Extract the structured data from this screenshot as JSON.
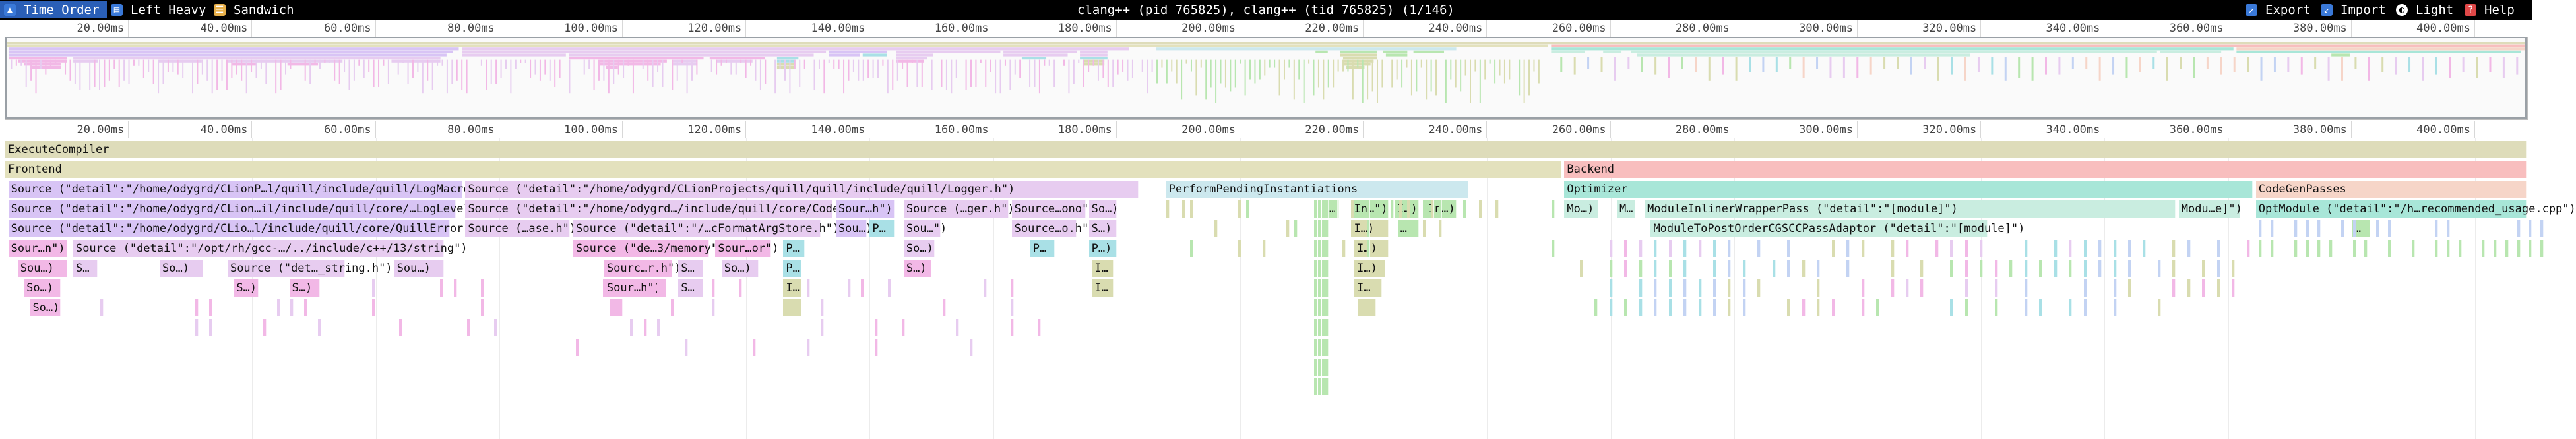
{
  "toolbar": {
    "time_order": "Time Order",
    "left_heavy": "Left Heavy",
    "sandwich": "Sandwich",
    "title": "clang++ (pid 765825), clang++ (tid 765825) (1/146)",
    "export": "Export",
    "import": "Import",
    "light": "Light",
    "help": "Help"
  },
  "icons": {
    "time_order": "timeline-icon",
    "left_heavy": "left-heavy-icon",
    "sandwich": "sandwich-icon",
    "export": "export-icon",
    "import": "import-icon",
    "light": "theme-icon",
    "help": "help-icon"
  },
  "ticks": [
    "20.00ms",
    "40.00ms",
    "60.00ms",
    "80.00ms",
    "100.00ms",
    "120.00ms",
    "140.00ms",
    "160.00ms",
    "180.00ms",
    "200.00ms",
    "220.00ms",
    "240.00ms",
    "260.00ms",
    "280.00ms",
    "300.00ms",
    "320.00ms",
    "340.00ms",
    "360.00ms",
    "380.00ms",
    "400.00ms"
  ],
  "colors": {
    "execute": "#dedcba",
    "frontend": "#e3e1bd",
    "backend": "#f8bebe",
    "source_purple": "#d8c4f5",
    "source_lilac": "#e7ccf0",
    "source_pink": "#f2b8e6",
    "optimizer": "#a8e6d8",
    "module_pass": "#c9ede0",
    "codegen": "#f6d5c8",
    "pending": "#cce8ee",
    "green": "#b8e6b0",
    "olive": "#d9dcb0",
    "cyan": "#a9e0e6",
    "blue": "#c3d3f3"
  },
  "frames": [
    {
      "d": 0,
      "s": 0,
      "e": 412,
      "label": "ExecuteCompiler",
      "c": "execute"
    },
    {
      "d": 1,
      "s": 0,
      "e": 252,
      "label": "Frontend",
      "c": "frontend"
    },
    {
      "d": 1,
      "s": 252.5,
      "e": 412,
      "label": "Backend",
      "c": "backend"
    },
    {
      "d": 2,
      "s": 0.5,
      "e": 74,
      "label": "Source (\"detail\":\"/home/odygrd/CLionP…l/quill/include/quill/LogMacros.h\")",
      "c": "source_purple"
    },
    {
      "d": 2,
      "s": 74.5,
      "e": 183.5,
      "label": "Source (\"detail\":\"/home/odygrd/CLionProjects/quill/quill/include/quill/Logger.h\")",
      "c": "source_lilac"
    },
    {
      "d": 2,
      "s": 188,
      "e": 237,
      "label": "PerformPendingInstantiations",
      "c": "pending"
    },
    {
      "d": 2,
      "s": 252.5,
      "e": 364,
      "label": "Optimizer",
      "c": "optimizer"
    },
    {
      "d": 2,
      "s": 364.5,
      "e": 412,
      "label": "CodeGenPasses",
      "c": "codegen"
    },
    {
      "d": 3,
      "s": 0.5,
      "e": 73,
      "label": "Source (\"detail\":\"/home/odygrd/CLion…il/include/quill/core/…LogLevel.h\")",
      "c": "source_purple"
    },
    {
      "d": 3,
      "s": 74.5,
      "e": 134,
      "label": "Source (\"detail\":\"/home/odygrd…/include/quill/core/Codec.h\")",
      "c": "source_lilac"
    },
    {
      "d": 3,
      "s": 134.5,
      "e": 144,
      "label": "Sour…h\")",
      "c": "source_purple"
    },
    {
      "d": 3,
      "s": 145.5,
      "e": 162.5,
      "label": "Source (…ger.h\")",
      "c": "source_lilac"
    },
    {
      "d": 3,
      "s": 163,
      "e": 175,
      "label": "Source…ono\")",
      "c": "source_lilac"
    },
    {
      "d": 3,
      "s": 175.5,
      "e": 180,
      "label": "So…)",
      "c": "source_lilac"
    },
    {
      "d": 3,
      "s": 214,
      "e": 216,
      "label": "…",
      "c": "green"
    },
    {
      "d": 3,
      "s": 218,
      "e": 224,
      "label": "In…\")",
      "c": "green"
    },
    {
      "d": 3,
      "s": 225,
      "e": 229,
      "label": "I…)",
      "c": "green"
    },
    {
      "d": 3,
      "s": 230,
      "e": 235,
      "label": "In…)",
      "c": "green"
    },
    {
      "d": 3,
      "s": 252.5,
      "e": 258,
      "label": "Mo…)",
      "c": "module_pass"
    },
    {
      "d": 3,
      "s": 261,
      "e": 264,
      "label": "M…",
      "c": "module_pass"
    },
    {
      "d": 3,
      "s": 265.5,
      "e": 351.5,
      "label": "ModuleInlinerWrapperPass (\"detail\":\"[module]\")",
      "c": "module_pass"
    },
    {
      "d": 3,
      "s": 352,
      "e": 362,
      "label": "Modu…e]\")",
      "c": "module_pass"
    },
    {
      "d": 3,
      "s": 364.5,
      "e": 411,
      "label": "OptModule (\"detail\":\"/h…recommended_usage.cpp\")",
      "c": "optimizer"
    },
    {
      "d": 4,
      "s": 0.5,
      "e": 72,
      "label": "Source (\"detail\":\"/home/odygrd/CLio…l/include/quill/core/QuillError.h\")",
      "c": "source_purple"
    },
    {
      "d": 4,
      "s": 74.5,
      "e": 91.5,
      "label": "Source (…ase.h\")",
      "c": "source_lilac"
    },
    {
      "d": 4,
      "s": 92,
      "e": 132,
      "label": "Source (\"detail\":\"/…cFormatArgStore.h\")",
      "c": "source_lilac"
    },
    {
      "d": 4,
      "s": 134.5,
      "e": 139.5,
      "label": "Sou…)",
      "c": "source_purple"
    },
    {
      "d": 4,
      "s": 140,
      "e": 144,
      "label": "P…",
      "c": "cyan"
    },
    {
      "d": 4,
      "s": 145.5,
      "e": 151.5,
      "label": "Sou…\")",
      "c": "source_lilac"
    },
    {
      "d": 4,
      "s": 163,
      "e": 173.5,
      "label": "Source…o.h\")",
      "c": "source_lilac"
    },
    {
      "d": 4,
      "s": 175.5,
      "e": 180,
      "label": "S…)",
      "c": "source_lilac"
    },
    {
      "d": 4,
      "s": 218,
      "e": 224,
      "label": "I…)",
      "c": "olive"
    },
    {
      "d": 4,
      "s": 225.5,
      "e": 229,
      "label": "…",
      "c": "green"
    },
    {
      "d": 4,
      "s": 266.5,
      "e": 321,
      "label": "ModuleToPostOrderCGSCCPassAdaptor (\"detail\":\"[module]\")",
      "c": "module_pass"
    },
    {
      "d": 4,
      "s": 380,
      "e": 383,
      "label": "…",
      "c": "green"
    },
    {
      "d": 5,
      "s": 0.5,
      "e": 10,
      "label": "Sour…n\")",
      "c": "source_pink"
    },
    {
      "d": 5,
      "s": 11,
      "e": 71,
      "label": "Source (\"detail\":\"/opt/rh/gcc-…/../include/c++/13/string\")",
      "c": "source_lilac"
    },
    {
      "d": 5,
      "s": 92,
      "e": 114,
      "label": "Source (\"de…3/memory\")",
      "c": "source_pink"
    },
    {
      "d": 5,
      "s": 115,
      "e": 124,
      "label": "Sour…or\")",
      "c": "source_pink"
    },
    {
      "d": 5,
      "s": 126,
      "e": 129.5,
      "label": "P…",
      "c": "cyan"
    },
    {
      "d": 5,
      "s": 145.5,
      "e": 150.5,
      "label": "So…)",
      "c": "source_lilac"
    },
    {
      "d": 5,
      "s": 166,
      "e": 170,
      "label": "P…",
      "c": "cyan"
    },
    {
      "d": 5,
      "s": 175.5,
      "e": 180,
      "label": "P…)",
      "c": "cyan"
    },
    {
      "d": 5,
      "s": 218.5,
      "e": 224,
      "label": "I…)",
      "c": "olive"
    },
    {
      "d": 6,
      "s": 2,
      "e": 10,
      "label": "Sou…)",
      "c": "source_pink"
    },
    {
      "d": 6,
      "s": 11,
      "e": 15,
      "label": "S…",
      "c": "source_lilac"
    },
    {
      "d": 6,
      "s": 25,
      "e": 32,
      "label": "So…)",
      "c": "source_lilac"
    },
    {
      "d": 6,
      "s": 36,
      "e": 55,
      "label": "Source (\"det…_string.h\")",
      "c": "source_lilac"
    },
    {
      "d": 6,
      "s": 63,
      "e": 71,
      "label": "Sou…)",
      "c": "source_lilac"
    },
    {
      "d": 6,
      "s": 97,
      "e": 108,
      "label": "Sourc…r.h\")",
      "c": "source_pink"
    },
    {
      "d": 6,
      "s": 109,
      "e": 113,
      "label": "S…",
      "c": "source_lilac"
    },
    {
      "d": 6,
      "s": 116,
      "e": 122,
      "label": "So…)",
      "c": "source_lilac"
    },
    {
      "d": 6,
      "s": 126,
      "e": 129,
      "label": "P…",
      "c": "cyan"
    },
    {
      "d": 6,
      "s": 145.5,
      "e": 150,
      "label": "S…)",
      "c": "source_pink"
    },
    {
      "d": 6,
      "s": 176,
      "e": 179.5,
      "label": "I…",
      "c": "olive"
    },
    {
      "d": 6,
      "s": 218.5,
      "e": 223.5,
      "label": "I…)",
      "c": "olive"
    },
    {
      "d": 7,
      "s": 3,
      "e": 9,
      "label": "So…)",
      "c": "source_pink"
    },
    {
      "d": 7,
      "s": 37,
      "e": 41,
      "label": "S…)",
      "c": "source_pink"
    },
    {
      "d": 7,
      "s": 46,
      "e": 51,
      "label": "S…)",
      "c": "source_pink"
    },
    {
      "d": 7,
      "s": 97,
      "e": 107,
      "label": "Sour…h\")",
      "c": "source_pink"
    },
    {
      "d": 7,
      "s": 109,
      "e": 113,
      "label": "S…",
      "c": "source_lilac"
    },
    {
      "d": 7,
      "s": 126,
      "e": 129,
      "label": "I…",
      "c": "olive"
    },
    {
      "d": 7,
      "s": 176,
      "e": 179.5,
      "label": "I…",
      "c": "olive"
    },
    {
      "d": 7,
      "s": 218.5,
      "e": 223,
      "label": "I…",
      "c": "olive"
    },
    {
      "d": 8,
      "s": 4,
      "e": 9,
      "label": "So…)",
      "c": "source_pink"
    },
    {
      "d": 8,
      "s": 98,
      "e": 100,
      "label": "",
      "c": "source_pink"
    },
    {
      "d": 8,
      "s": 126,
      "e": 129,
      "label": "",
      "c": "olive"
    },
    {
      "d": 8,
      "s": 219,
      "e": 222,
      "label": "",
      "c": "olive"
    }
  ]
}
